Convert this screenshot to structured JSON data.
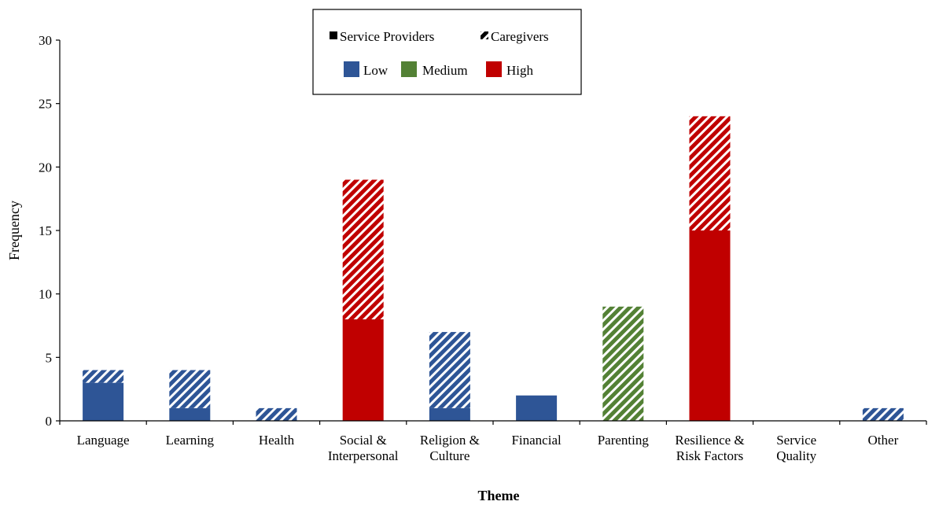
{
  "chart_data": {
    "type": "bar",
    "stacked": true,
    "xlabel": "Theme",
    "ylabel": "Frequency",
    "ylim": [
      0,
      30
    ],
    "yticks": [
      0,
      5,
      10,
      15,
      20,
      25,
      30
    ],
    "grid": false,
    "categories": [
      [
        "Language"
      ],
      [
        "Learning"
      ],
      [
        "Health"
      ],
      [
        "Social &",
        "Interpersonal"
      ],
      [
        "Religion &",
        "Culture"
      ],
      [
        "Financial"
      ],
      [
        "Parenting"
      ],
      [
        "Resilience &",
        "Risk Factors"
      ],
      [
        "Service",
        "Quality"
      ],
      [
        "Other"
      ]
    ],
    "series": [
      {
        "name": "Service Providers",
        "pattern": "solid",
        "values": [
          3,
          1,
          0,
          8,
          1,
          2,
          0,
          15,
          0,
          0
        ]
      },
      {
        "name": "Caregivers",
        "pattern": "hatched",
        "values": [
          1,
          3,
          1,
          11,
          6,
          0,
          9,
          9,
          0,
          1
        ]
      }
    ],
    "level_names": [
      "Low",
      "Medium",
      "High"
    ],
    "category_level": [
      "Low",
      "Low",
      "Low",
      "High",
      "Low",
      "Low",
      "Medium",
      "High",
      "Low",
      "Low"
    ],
    "colors": {
      "Low": "#2e5596",
      "Medium": "#538135",
      "High": "#c00000"
    },
    "legend_placement": "top-center"
  }
}
